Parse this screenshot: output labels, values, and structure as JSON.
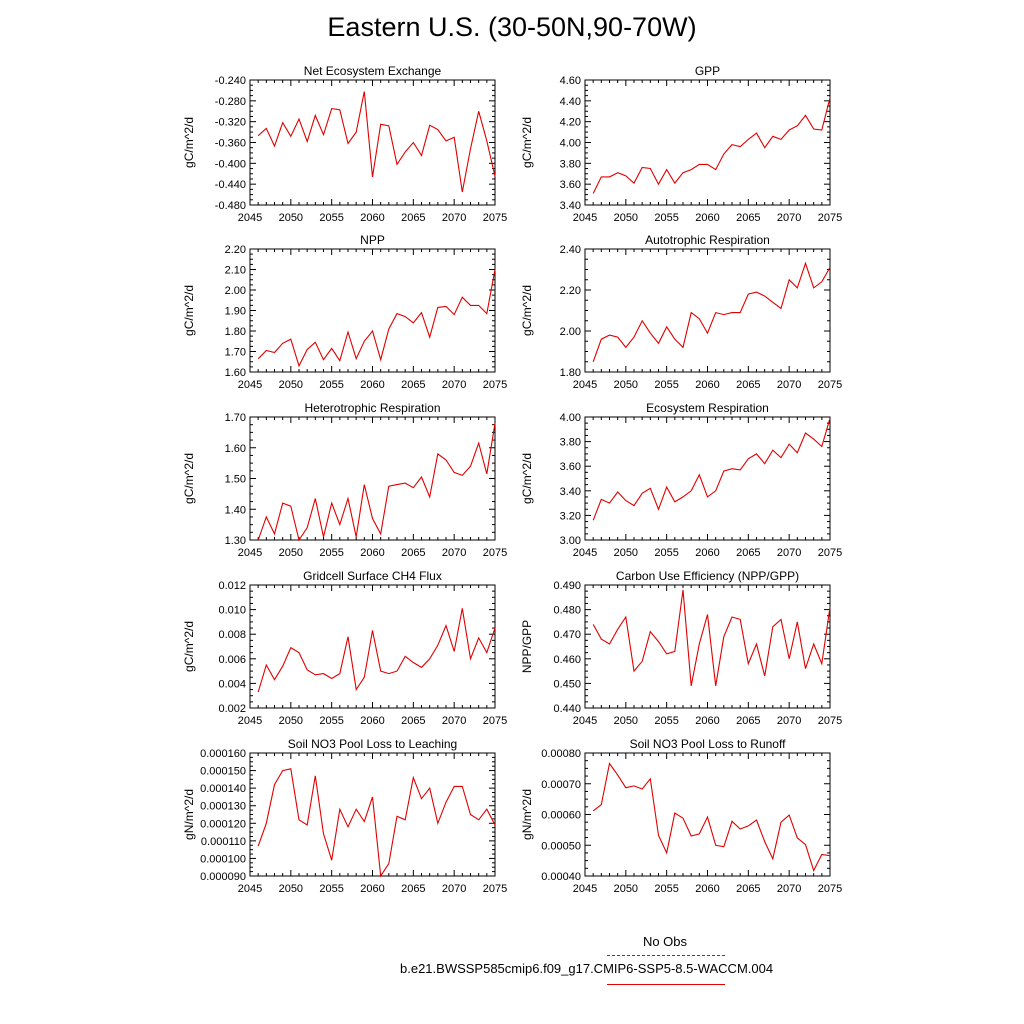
{
  "page": {
    "title": "Eastern U.S. (30-50N,90-70W)",
    "legend_obs": "No Obs",
    "legend_model": "b.e21.BWSSP585cmip6.f09_g17.CMIP6-SSP5-8.5-WACCM.004",
    "colors": {
      "model_line": "#e00000",
      "obs_line": "#3a3aa8"
    }
  },
  "chart_data": [
    {
      "type": "line",
      "title": "Net Ecosystem Exchange",
      "xlabel": "",
      "ylabel": "gC/m^2/d",
      "xlim": [
        2045,
        2075
      ],
      "ylim": [
        -0.48,
        -0.24
      ],
      "x_ticks": [
        "2045",
        "2050",
        "2055",
        "2060",
        "2065",
        "2070",
        "2075"
      ],
      "y_ticks": [
        "-0.480",
        "-0.440",
        "-0.400",
        "-0.360",
        "-0.320",
        "-0.280",
        "-0.240"
      ],
      "x": [
        2046,
        2047,
        2048,
        2049,
        2050,
        2051,
        2052,
        2053,
        2054,
        2055,
        2056,
        2057,
        2058,
        2059,
        2060,
        2061,
        2062,
        2063,
        2064,
        2065,
        2066,
        2067,
        2068,
        2069,
        2070,
        2071,
        2072,
        2073,
        2074,
        2075
      ],
      "values": [
        -0.347,
        -0.333,
        -0.367,
        -0.322,
        -0.348,
        -0.315,
        -0.358,
        -0.308,
        -0.345,
        -0.295,
        -0.297,
        -0.362,
        -0.34,
        -0.262,
        -0.426,
        -0.325,
        -0.328,
        -0.402,
        -0.378,
        -0.36,
        -0.385,
        -0.327,
        -0.335,
        -0.357,
        -0.35,
        -0.455,
        -0.372,
        -0.3,
        -0.357,
        -0.425
      ]
    },
    {
      "type": "line",
      "title": "GPP",
      "xlabel": "",
      "ylabel": "gC/m^2/d",
      "xlim": [
        2045,
        2075
      ],
      "ylim": [
        3.4,
        4.6
      ],
      "x_ticks": [
        "2045",
        "2050",
        "2055",
        "2060",
        "2065",
        "2070",
        "2075"
      ],
      "y_ticks": [
        "3.40",
        "3.60",
        "3.80",
        "4.00",
        "4.20",
        "4.40",
        "4.60"
      ],
      "x": [
        2046,
        2047,
        2048,
        2049,
        2050,
        2051,
        2052,
        2053,
        2054,
        2055,
        2056,
        2057,
        2058,
        2059,
        2060,
        2061,
        2062,
        2063,
        2064,
        2065,
        2066,
        2067,
        2068,
        2069,
        2070,
        2071,
        2072,
        2073,
        2074,
        2075
      ],
      "values": [
        3.51,
        3.67,
        3.67,
        3.71,
        3.68,
        3.61,
        3.76,
        3.75,
        3.6,
        3.74,
        3.61,
        3.71,
        3.74,
        3.79,
        3.79,
        3.74,
        3.89,
        3.98,
        3.96,
        4.03,
        4.09,
        3.95,
        4.06,
        4.03,
        4.12,
        4.16,
        4.26,
        4.13,
        4.12,
        4.43
      ]
    },
    {
      "type": "line",
      "title": "NPP",
      "xlabel": "",
      "ylabel": "gC/m^2/d",
      "xlim": [
        2045,
        2075
      ],
      "ylim": [
        1.6,
        2.2
      ],
      "x_ticks": [
        "2045",
        "2050",
        "2055",
        "2060",
        "2065",
        "2070",
        "2075"
      ],
      "y_ticks": [
        "1.60",
        "1.70",
        "1.80",
        "1.90",
        "2.00",
        "2.10",
        "2.20"
      ],
      "x": [
        2046,
        2047,
        2048,
        2049,
        2050,
        2051,
        2052,
        2053,
        2054,
        2055,
        2056,
        2057,
        2058,
        2059,
        2060,
        2061,
        2062,
        2063,
        2064,
        2065,
        2066,
        2067,
        2068,
        2069,
        2070,
        2071,
        2072,
        2073,
        2074,
        2075
      ],
      "values": [
        1.665,
        1.705,
        1.695,
        1.74,
        1.76,
        1.63,
        1.71,
        1.745,
        1.66,
        1.715,
        1.655,
        1.795,
        1.665,
        1.75,
        1.8,
        1.66,
        1.81,
        1.885,
        1.87,
        1.84,
        1.89,
        1.77,
        1.915,
        1.92,
        1.88,
        1.965,
        1.925,
        1.925,
        1.885,
        2.1
      ]
    },
    {
      "type": "line",
      "title": "Autotrophic Respiration",
      "xlabel": "",
      "ylabel": "gC/m^2/d",
      "xlim": [
        2045,
        2075
      ],
      "ylim": [
        1.8,
        2.4
      ],
      "x_ticks": [
        "2045",
        "2050",
        "2055",
        "2060",
        "2065",
        "2070",
        "2075"
      ],
      "y_ticks": [
        "1.80",
        "2.00",
        "2.20",
        "2.40"
      ],
      "x": [
        2046,
        2047,
        2048,
        2049,
        2050,
        2051,
        2052,
        2053,
        2054,
        2055,
        2056,
        2057,
        2058,
        2059,
        2060,
        2061,
        2062,
        2063,
        2064,
        2065,
        2066,
        2067,
        2068,
        2069,
        2070,
        2071,
        2072,
        2073,
        2074,
        2075
      ],
      "values": [
        1.85,
        1.96,
        1.98,
        1.97,
        1.92,
        1.97,
        2.05,
        1.99,
        1.94,
        2.02,
        1.96,
        1.92,
        2.09,
        2.06,
        1.99,
        2.09,
        2.08,
        2.09,
        2.09,
        2.18,
        2.19,
        2.17,
        2.14,
        2.11,
        2.25,
        2.21,
        2.33,
        2.21,
        2.24,
        2.31
      ]
    },
    {
      "type": "line",
      "title": "Heterotrophic Respiration",
      "xlabel": "",
      "ylabel": "gC/m^2/d",
      "xlim": [
        2045,
        2075
      ],
      "ylim": [
        1.3,
        1.7
      ],
      "x_ticks": [
        "2045",
        "2050",
        "2055",
        "2060",
        "2065",
        "2070",
        "2075"
      ],
      "y_ticks": [
        "1.30",
        "1.40",
        "1.50",
        "1.60",
        "1.70"
      ],
      "x": [
        2046,
        2047,
        2048,
        2049,
        2050,
        2051,
        2052,
        2053,
        2054,
        2055,
        2056,
        2057,
        2058,
        2059,
        2060,
        2061,
        2062,
        2063,
        2064,
        2065,
        2066,
        2067,
        2068,
        2069,
        2070,
        2071,
        2072,
        2073,
        2074,
        2075
      ],
      "values": [
        1.3,
        1.375,
        1.32,
        1.42,
        1.41,
        1.3,
        1.34,
        1.435,
        1.31,
        1.42,
        1.35,
        1.435,
        1.31,
        1.48,
        1.37,
        1.32,
        1.475,
        1.48,
        1.485,
        1.47,
        1.505,
        1.44,
        1.58,
        1.56,
        1.52,
        1.51,
        1.54,
        1.615,
        1.515,
        1.68
      ]
    },
    {
      "type": "line",
      "title": "Ecosystem Respiration",
      "xlabel": "",
      "ylabel": "gC/m^2/d",
      "xlim": [
        2045,
        2075
      ],
      "ylim": [
        3.0,
        4.0
      ],
      "x_ticks": [
        "2045",
        "2050",
        "2055",
        "2060",
        "2065",
        "2070",
        "2075"
      ],
      "y_ticks": [
        "3.00",
        "3.20",
        "3.40",
        "3.60",
        "3.80",
        "4.00"
      ],
      "x": [
        2046,
        2047,
        2048,
        2049,
        2050,
        2051,
        2052,
        2053,
        2054,
        2055,
        2056,
        2057,
        2058,
        2059,
        2060,
        2061,
        2062,
        2063,
        2064,
        2065,
        2066,
        2067,
        2068,
        2069,
        2070,
        2071,
        2072,
        2073,
        2074,
        2075
      ],
      "values": [
        3.16,
        3.33,
        3.3,
        3.39,
        3.32,
        3.28,
        3.38,
        3.42,
        3.25,
        3.43,
        3.31,
        3.35,
        3.4,
        3.53,
        3.35,
        3.4,
        3.56,
        3.58,
        3.57,
        3.66,
        3.7,
        3.62,
        3.73,
        3.67,
        3.78,
        3.71,
        3.87,
        3.82,
        3.76,
        3.99
      ]
    },
    {
      "type": "line",
      "title": "Gridcell Surface CH4 Flux",
      "xlabel": "",
      "ylabel": "gC/m^2/d",
      "xlim": [
        2045,
        2075
      ],
      "ylim": [
        0.002,
        0.012
      ],
      "x_ticks": [
        "2045",
        "2050",
        "2055",
        "2060",
        "2065",
        "2070",
        "2075"
      ],
      "y_ticks": [
        "0.002",
        "0.004",
        "0.006",
        "0.008",
        "0.010",
        "0.012"
      ],
      "x": [
        2046,
        2047,
        2048,
        2049,
        2050,
        2051,
        2052,
        2053,
        2054,
        2055,
        2056,
        2057,
        2058,
        2059,
        2060,
        2061,
        2062,
        2063,
        2064,
        2065,
        2066,
        2067,
        2068,
        2069,
        2070,
        2071,
        2072,
        2073,
        2074,
        2075
      ],
      "values": [
        0.0033,
        0.0055,
        0.0043,
        0.0054,
        0.0069,
        0.0065,
        0.0051,
        0.0047,
        0.0048,
        0.0044,
        0.0048,
        0.0078,
        0.0035,
        0.0045,
        0.0083,
        0.005,
        0.0048,
        0.005,
        0.0062,
        0.0057,
        0.0053,
        0.006,
        0.0071,
        0.0087,
        0.0066,
        0.0101,
        0.006,
        0.0077,
        0.0065,
        0.0085
      ]
    },
    {
      "type": "line",
      "title": "Carbon Use Efficiency (NPP/GPP)",
      "xlabel": "",
      "ylabel": "NPP/GPP",
      "xlim": [
        2045,
        2075
      ],
      "ylim": [
        0.44,
        0.49
      ],
      "x_ticks": [
        "2045",
        "2050",
        "2055",
        "2060",
        "2065",
        "2070",
        "2075"
      ],
      "y_ticks": [
        "0.440",
        "0.450",
        "0.460",
        "0.470",
        "0.480",
        "0.490"
      ],
      "x": [
        2046,
        2047,
        2048,
        2049,
        2050,
        2051,
        2052,
        2053,
        2054,
        2055,
        2056,
        2057,
        2058,
        2059,
        2060,
        2061,
        2062,
        2063,
        2064,
        2065,
        2066,
        2067,
        2068,
        2069,
        2070,
        2071,
        2072,
        2073,
        2074,
        2075
      ],
      "values": [
        0.474,
        0.468,
        0.466,
        0.472,
        0.477,
        0.455,
        0.459,
        0.471,
        0.467,
        0.462,
        0.463,
        0.488,
        0.449,
        0.466,
        0.478,
        0.449,
        0.469,
        0.477,
        0.476,
        0.458,
        0.466,
        0.453,
        0.473,
        0.476,
        0.46,
        0.475,
        0.456,
        0.466,
        0.458,
        0.481
      ]
    },
    {
      "type": "line",
      "title": "Soil NO3 Pool Loss to Leaching",
      "xlabel": "",
      "ylabel": "gN/m^2/d",
      "xlim": [
        2045,
        2075
      ],
      "ylim": [
        9e-05,
        0.00016
      ],
      "x_ticks": [
        "2045",
        "2050",
        "2055",
        "2060",
        "2065",
        "2070",
        "2075"
      ],
      "y_ticks": [
        "0.000090",
        "0.000100",
        "0.000110",
        "0.000120",
        "0.000130",
        "0.000140",
        "0.000150",
        "0.000160"
      ],
      "x": [
        2046,
        2047,
        2048,
        2049,
        2050,
        2051,
        2052,
        2053,
        2054,
        2055,
        2056,
        2057,
        2058,
        2059,
        2060,
        2061,
        2062,
        2063,
        2064,
        2065,
        2066,
        2067,
        2068,
        2069,
        2070,
        2071,
        2072,
        2073,
        2074,
        2075
      ],
      "values": [
        0.000107,
        0.00012,
        0.000142,
        0.00015,
        0.000151,
        0.000122,
        0.000119,
        0.000147,
        0.000114,
        9.9e-05,
        0.000128,
        0.000118,
        0.000128,
        0.000121,
        0.000135,
        9e-05,
        9.7e-05,
        0.000124,
        0.000122,
        0.000146,
        0.000134,
        0.00014,
        0.00012,
        0.000132,
        0.000141,
        0.000141,
        0.000125,
        0.000122,
        0.000128,
        0.000119
      ]
    },
    {
      "type": "line",
      "title": "Soil NO3 Pool Loss to Runoff",
      "xlabel": "",
      "ylabel": "gN/m^2/d",
      "xlim": [
        2045,
        2075
      ],
      "ylim": [
        0.0004,
        0.0008
      ],
      "x_ticks": [
        "2045",
        "2050",
        "2055",
        "2060",
        "2065",
        "2070",
        "2075"
      ],
      "y_ticks": [
        "0.00040",
        "0.00050",
        "0.00060",
        "0.00070",
        "0.00080"
      ],
      "x": [
        2046,
        2047,
        2048,
        2049,
        2050,
        2051,
        2052,
        2053,
        2054,
        2055,
        2056,
        2057,
        2058,
        2059,
        2060,
        2061,
        2062,
        2063,
        2064,
        2065,
        2066,
        2067,
        2068,
        2069,
        2070,
        2071,
        2072,
        2073,
        2074,
        2075
      ],
      "values": [
        0.000612,
        0.000632,
        0.000766,
        0.000728,
        0.000687,
        0.000693,
        0.000683,
        0.000716,
        0.000532,
        0.000475,
        0.000605,
        0.000588,
        0.00053,
        0.000537,
        0.000592,
        0.0005,
        0.000495,
        0.000578,
        0.000553,
        0.000563,
        0.000582,
        0.000512,
        0.000456,
        0.000575,
        0.000598,
        0.000524,
        0.000502,
        0.000418,
        0.00047,
        0.000466
      ]
    }
  ]
}
